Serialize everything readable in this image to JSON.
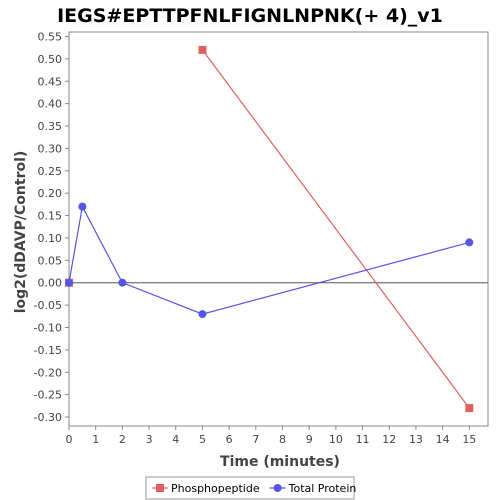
{
  "chart_data": {
    "type": "line",
    "title": "IEGS#EPTTPFNLFIGNLNPNK(+ 4)_v1",
    "xlabel": "Time (minutes)",
    "ylabel": "log2(dDAVP/Control)",
    "xlim": [
      0,
      15.7
    ],
    "ylim": [
      -0.32,
      0.56
    ],
    "x_ticks": [
      0,
      1,
      2,
      3,
      4,
      5,
      6,
      7,
      8,
      9,
      10,
      11,
      12,
      13,
      14,
      15
    ],
    "y_ticks": [
      -0.3,
      -0.25,
      -0.2,
      -0.15,
      -0.1,
      -0.05,
      0.0,
      0.05,
      0.1,
      0.15,
      0.2,
      0.25,
      0.3,
      0.35,
      0.4,
      0.45,
      0.5,
      0.55
    ],
    "y_tick_labels": [
      "-0.30",
      "-0.25",
      "-0.20",
      "-0.15",
      "-0.10",
      "-0.05",
      "0.00",
      "0.05",
      "0.10",
      "0.15",
      "0.20",
      "0.25",
      "0.30",
      "0.35",
      "0.40",
      "0.45",
      "0.50",
      "0.55"
    ],
    "zero_line": true,
    "grid": false,
    "legend_position": "bottom-center",
    "series": [
      {
        "name": "Phosphopeptide",
        "color": "#e06060",
        "marker": "square",
        "segments": [
          [
            [
              0,
              0.0
            ]
          ],
          [
            [
              5,
              0.52
            ],
            [
              15,
              -0.28
            ]
          ]
        ]
      },
      {
        "name": "Total Protein",
        "color": "#5555e6",
        "marker": "circle",
        "segments": [
          [
            [
              0,
              0.0
            ],
            [
              0.5,
              0.17
            ],
            [
              2,
              0.0
            ],
            [
              5,
              -0.07
            ],
            [
              15,
              0.09
            ]
          ]
        ]
      }
    ]
  }
}
